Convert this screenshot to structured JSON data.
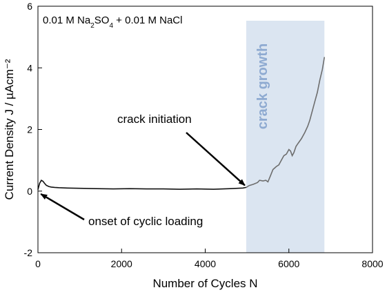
{
  "chart_data": {
    "type": "line",
    "title": "",
    "xlabel": "Number of Cycles N",
    "ylabel": "Current Density J / µAcm⁻²",
    "xlim": [
      0,
      8000
    ],
    "ylim": [
      -2,
      6
    ],
    "x_ticks": [
      0,
      2000,
      4000,
      6000,
      8000
    ],
    "y_ticks": [
      -2,
      0,
      2,
      4,
      6
    ],
    "grid": false,
    "legend": "none",
    "condition_label": {
      "parts": [
        {
          "text": "0.01 M Na",
          "sub": false
        },
        {
          "text": "2",
          "sub": true
        },
        {
          "text": "SO",
          "sub": false
        },
        {
          "text": "4",
          "sub": true
        },
        {
          "text": " + 0.01 M NaCl",
          "sub": false
        }
      ]
    },
    "shaded_region": {
      "x_start": 4980,
      "x_end": 6850,
      "label": "crack growth",
      "color": "#dbe5f1",
      "label_color": "#8eaad1"
    },
    "annotations": [
      {
        "text": "crack initiation",
        "arrow_to": [
          4980,
          0.12
        ]
      },
      {
        "text": "onset of cyclic loading",
        "arrow_to": [
          20,
          -0.05
        ]
      }
    ],
    "series": [
      {
        "color": "#111111",
        "x": [
          0,
          40,
          80,
          120,
          160,
          200,
          260,
          320,
          400,
          500,
          700,
          1000,
          1400,
          1800,
          2200,
          2600,
          3000,
          3400,
          3800,
          4200,
          4600,
          4900,
          4980
        ],
        "y": [
          0.05,
          0.25,
          0.35,
          0.32,
          0.25,
          0.19,
          0.15,
          0.13,
          0.12,
          0.11,
          0.1,
          0.09,
          0.08,
          0.07,
          0.08,
          0.07,
          0.07,
          0.06,
          0.07,
          0.06,
          0.08,
          0.1,
          0.12
        ]
      },
      {
        "color": "#6d6d6d",
        "x": [
          4980,
          5050,
          5150,
          5250,
          5300,
          5380,
          5450,
          5500,
          5560,
          5620,
          5700,
          5760,
          5820,
          5880,
          5940,
          6000,
          6040,
          6080,
          6120,
          6170,
          6220,
          6300,
          6380,
          6450,
          6500,
          6560,
          6620,
          6680,
          6740,
          6800,
          6850
        ],
        "y": [
          0.12,
          0.18,
          0.22,
          0.28,
          0.35,
          0.33,
          0.35,
          0.3,
          0.5,
          0.7,
          0.8,
          0.85,
          1.0,
          1.15,
          1.2,
          1.35,
          1.3,
          1.15,
          1.25,
          1.45,
          1.55,
          1.7,
          1.9,
          2.1,
          2.3,
          2.6,
          2.9,
          3.2,
          3.6,
          3.95,
          4.35
        ]
      }
    ]
  }
}
